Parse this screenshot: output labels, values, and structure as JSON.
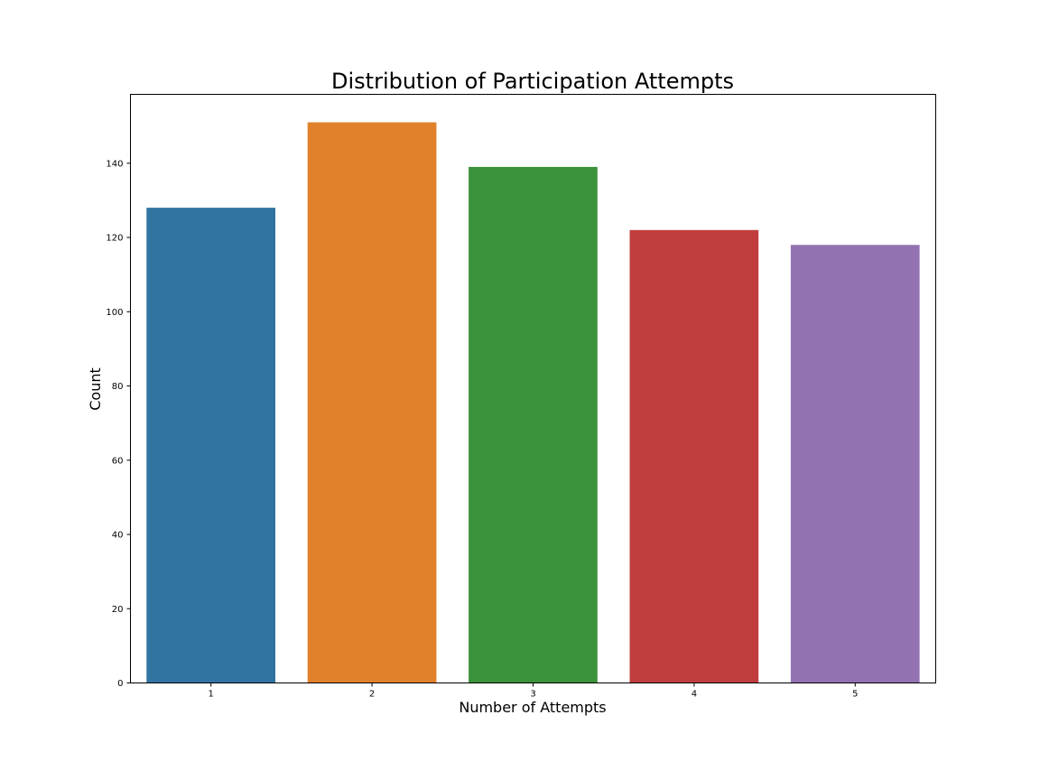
{
  "chart_data": {
    "type": "bar",
    "title": "Distribution of Participation Attempts",
    "xlabel": "Number of Attempts",
    "ylabel": "Count",
    "categories": [
      "1",
      "2",
      "3",
      "4",
      "5"
    ],
    "values": [
      128,
      151,
      139,
      122,
      118
    ],
    "colors": [
      "#3274a1",
      "#e1812c",
      "#3a923a",
      "#c03d3e",
      "#9372b2"
    ],
    "yticks": [
      0,
      20,
      40,
      60,
      80,
      100,
      120,
      140
    ],
    "ylim": [
      0,
      158.55
    ],
    "grid": false,
    "legend": "none"
  }
}
